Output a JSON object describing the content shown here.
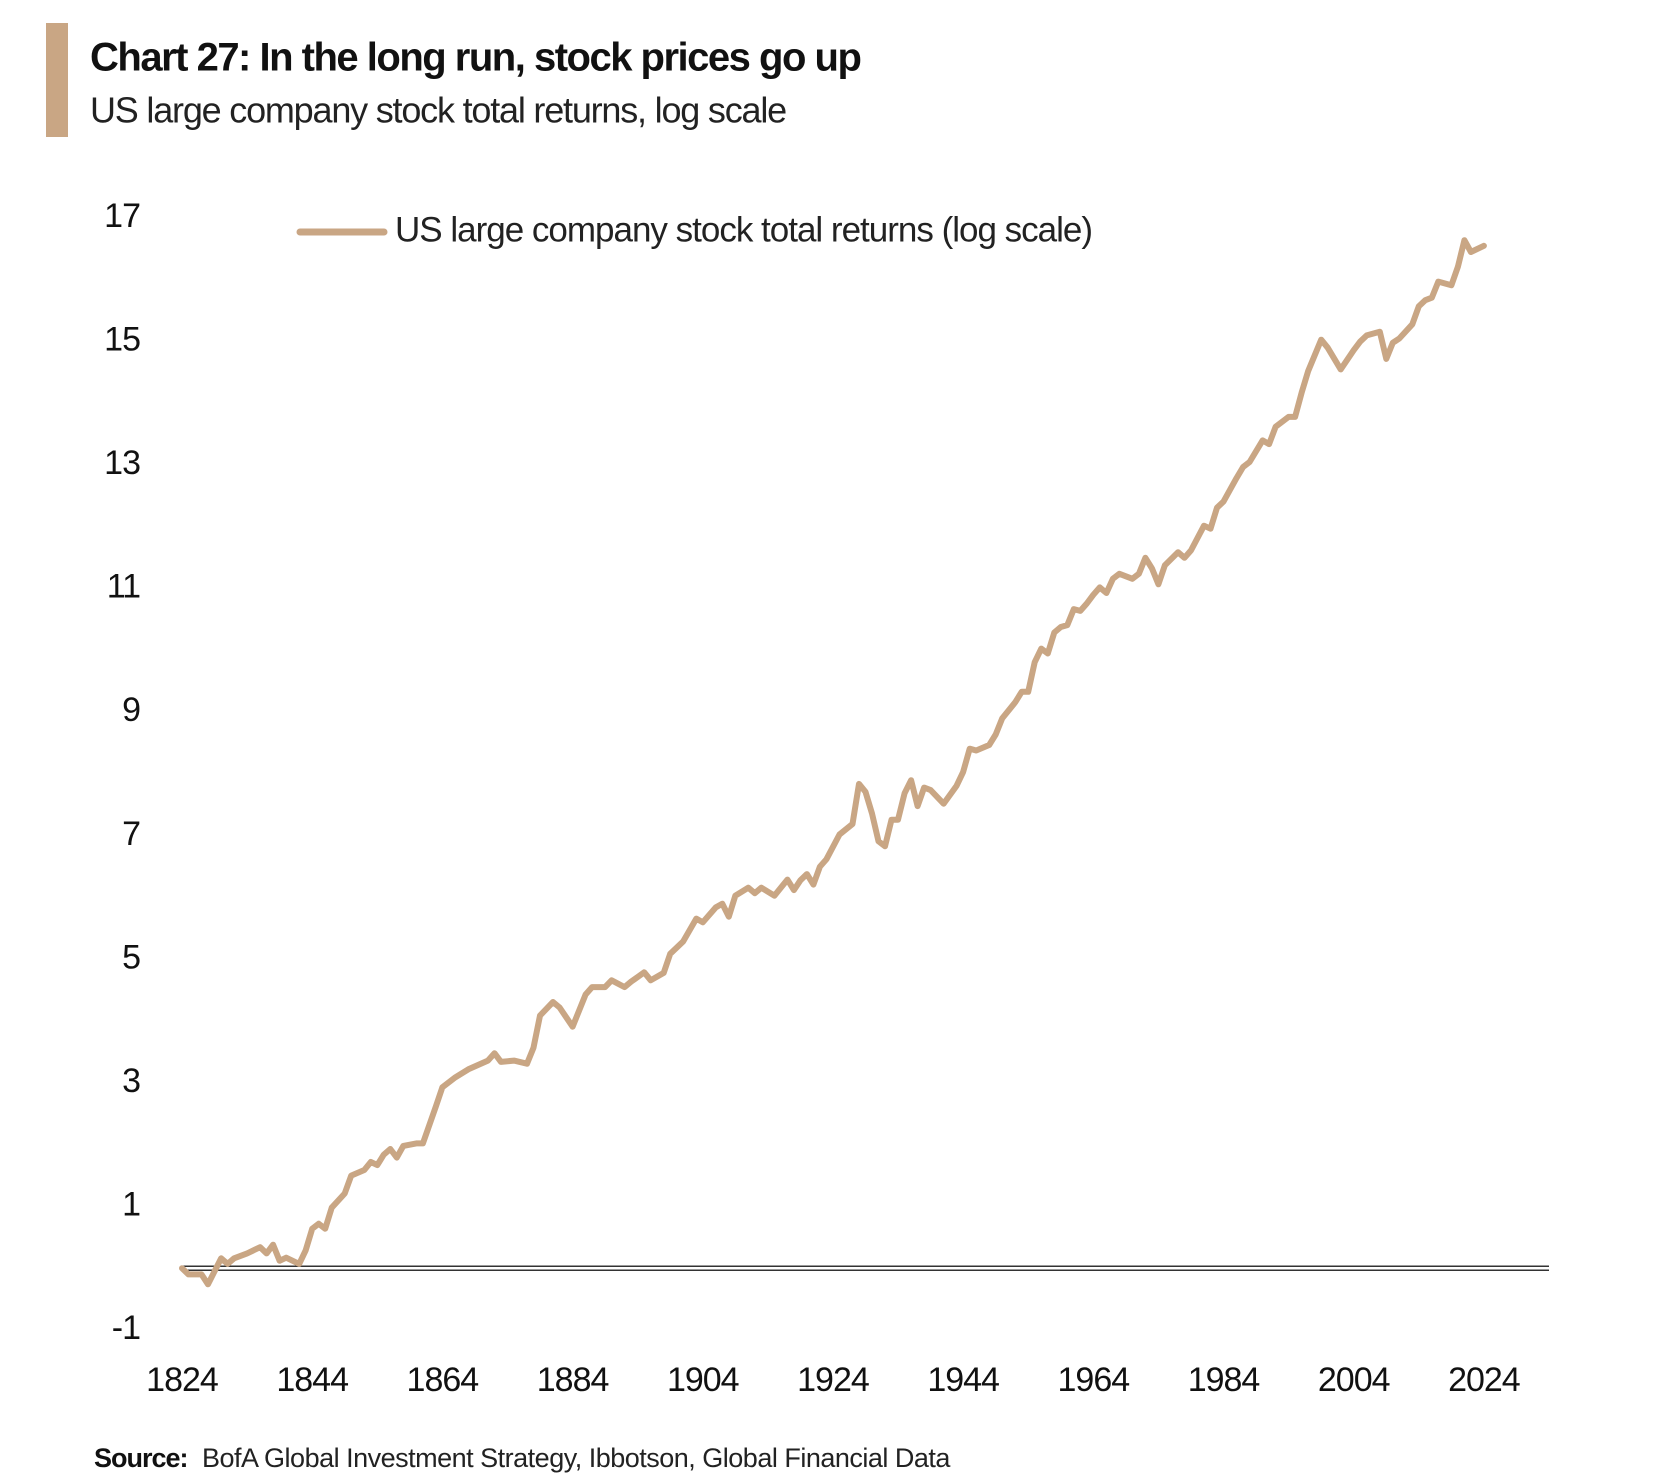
{
  "chart_data": {
    "type": "line",
    "title": "Chart 27: In the long run, stock prices go up",
    "subtitle": "US large  company stock total returns, log scale",
    "source_label": "Source:",
    "source": "BofA Global Investment Strategy, Ibbotson,  Global Financial Data",
    "x": [
      1824,
      1825,
      1827,
      1828,
      1830,
      1831,
      1832,
      1834,
      1836,
      1837,
      1838,
      1839,
      1840,
      1842,
      1843,
      1844,
      1845,
      1846,
      1847,
      1849,
      1850,
      1852,
      1853,
      1854,
      1855,
      1856,
      1857,
      1858,
      1860,
      1861,
      1863,
      1864,
      1866,
      1868,
      1871,
      1872,
      1873,
      1875,
      1877,
      1878,
      1879,
      1881,
      1882,
      1884,
      1886,
      1887,
      1889,
      1890,
      1892,
      1893,
      1895,
      1896,
      1898,
      1899,
      1901,
      1903,
      1904,
      1906,
      1907,
      1908,
      1909,
      1911,
      1912,
      1913,
      1915,
      1917,
      1918,
      1919,
      1920,
      1921,
      1922,
      1923,
      1925,
      1927,
      1928,
      1929,
      1930,
      1931,
      1932,
      1933,
      1934,
      1935,
      1936,
      1937,
      1938,
      1939,
      1941,
      1943,
      1944,
      1945,
      1946,
      1948,
      1949,
      1950,
      1952,
      1953,
      1954,
      1955,
      1956,
      1957,
      1958,
      1959,
      1960,
      1961,
      1962,
      1963,
      1964,
      1965,
      1966,
      1967,
      1968,
      1970,
      1971,
      1972,
      1973,
      1974,
      1975,
      1977,
      1978,
      1979,
      1981,
      1982,
      1983,
      1984,
      1986,
      1987,
      1988,
      1990,
      1991,
      1992,
      1994,
      1995,
      1996,
      1997,
      1999,
      2000,
      2002,
      2004,
      2005,
      2006,
      2008,
      2009,
      2010,
      2011,
      2013,
      2014,
      2015,
      2016,
      2017,
      2019,
      2020,
      2021,
      2022,
      2024
    ],
    "series": [
      {
        "name": "US large company stock total returns (log scale)",
        "color": "#c9a684",
        "values": [
          0,
          -0.1,
          -0.1,
          -0.26,
          0.16,
          0.07,
          0.16,
          0.24,
          0.34,
          0.24,
          0.38,
          0.12,
          0.17,
          0.07,
          0.29,
          0.64,
          0.72,
          0.64,
          0.98,
          1.21,
          1.5,
          1.59,
          1.72,
          1.67,
          1.84,
          1.93,
          1.79,
          1.98,
          2.02,
          2.02,
          2.62,
          2.93,
          3.09,
          3.22,
          3.36,
          3.48,
          3.34,
          3.36,
          3.31,
          3.57,
          4.09,
          4.31,
          4.22,
          3.91,
          4.43,
          4.55,
          4.55,
          4.66,
          4.55,
          4.64,
          4.79,
          4.66,
          4.78,
          5.09,
          5.29,
          5.66,
          5.6,
          5.84,
          5.9,
          5.69,
          6.03,
          6.16,
          6.07,
          6.16,
          6.03,
          6.29,
          6.12,
          6.28,
          6.38,
          6.21,
          6.5,
          6.62,
          7.02,
          7.19,
          7.84,
          7.71,
          7.36,
          6.91,
          6.83,
          7.26,
          7.26,
          7.69,
          7.9,
          7.48,
          7.78,
          7.74,
          7.52,
          7.81,
          8.03,
          8.41,
          8.38,
          8.47,
          8.64,
          8.9,
          9.16,
          9.33,
          9.33,
          9.81,
          10.03,
          9.95,
          10.29,
          10.38,
          10.41,
          10.67,
          10.64,
          10.76,
          10.9,
          11.02,
          10.93,
          11.16,
          11.24,
          11.16,
          11.24,
          11.5,
          11.33,
          11.07,
          11.38,
          11.59,
          11.5,
          11.62,
          12.02,
          11.97,
          12.31,
          12.41,
          12.79,
          12.97,
          13.05,
          13.4,
          13.34,
          13.62,
          13.78,
          13.78,
          14.17,
          14.52,
          15.03,
          14.9,
          14.55,
          14.86,
          15.0,
          15.1,
          15.16,
          14.72,
          14.98,
          15.05,
          15.28,
          15.57,
          15.67,
          15.71,
          15.97,
          15.91,
          16.21,
          16.64,
          16.45,
          16.55
        ]
      }
    ],
    "xlim": [
      1824,
      2034
    ],
    "xticks": [
      1824,
      1844,
      1864,
      1884,
      1904,
      1924,
      1944,
      1964,
      1984,
      2004,
      2024
    ],
    "ylim": [
      -1,
      17
    ],
    "yticks": [
      -1,
      1,
      3,
      5,
      7,
      9,
      11,
      13,
      15,
      17
    ],
    "x_axis_at": 0,
    "grid": false,
    "legend": "top"
  }
}
